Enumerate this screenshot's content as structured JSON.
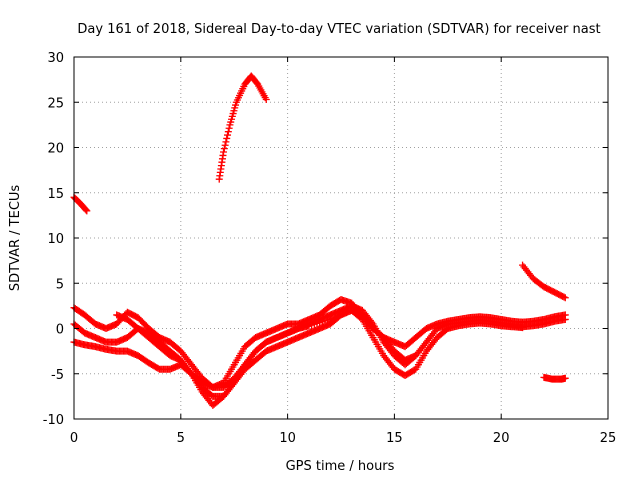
{
  "chart_data": {
    "type": "scatter",
    "title": "Day 161 of 2018, Sidereal Day-to-day VTEC variation (SDTVAR) for receiver nast",
    "xlabel": "GPS time / hours",
    "ylabel": "SDTVAR / TECUs",
    "xlim": [
      0,
      25
    ],
    "ylim": [
      -10,
      30
    ],
    "xticks": [
      0,
      5,
      10,
      15,
      20,
      25
    ],
    "yticks": [
      -10,
      -5,
      0,
      5,
      10,
      15,
      20,
      25,
      30
    ],
    "grid": true,
    "marker": "+",
    "series_color": "#ff0000",
    "series": [
      {
        "name": "arc-a",
        "x": [
          0.0,
          0.3,
          0.6
        ],
        "y": [
          14.5,
          13.8,
          13.0
        ]
      },
      {
        "name": "arc-b",
        "x": [
          6.8,
          7.0,
          7.3,
          7.6,
          8.0,
          8.3,
          8.6,
          9.0
        ],
        "y": [
          16.5,
          19.5,
          22.5,
          25.0,
          27.0,
          27.9,
          27.0,
          25.3
        ]
      },
      {
        "name": "arc-c",
        "x": [
          21.0,
          21.5,
          22.0,
          22.5,
          23.0
        ],
        "y": [
          7.0,
          5.5,
          4.6,
          4.0,
          3.4
        ]
      },
      {
        "name": "arc-d",
        "x": [
          22.0,
          22.4,
          22.8,
          23.0
        ],
        "y": [
          -5.4,
          -5.6,
          -5.6,
          -5.5
        ]
      },
      {
        "name": "arc-e",
        "x": [
          0.0,
          0.5,
          1.0,
          1.5,
          2.0,
          2.5,
          3.0,
          3.5,
          4.0,
          4.5,
          5.0,
          5.5,
          6.0,
          6.5,
          7.0,
          7.5,
          8.0,
          8.5,
          9.0,
          9.5,
          10.0,
          10.5,
          11.0,
          11.5,
          12.0,
          12.5,
          13.0,
          13.5,
          14.0,
          14.5,
          15.0,
          15.5,
          16.0,
          16.5,
          17.0,
          17.5,
          18.0,
          18.5,
          19.0,
          19.5,
          20.0,
          20.5,
          21.0,
          21.5,
          22.0,
          22.5,
          23.0
        ],
        "y": [
          2.3,
          1.5,
          0.5,
          0.0,
          0.5,
          1.8,
          1.2,
          0.0,
          -1.0,
          -1.5,
          -2.5,
          -4.0,
          -5.5,
          -6.5,
          -6.0,
          -4.0,
          -2.0,
          -1.0,
          -0.5,
          0.0,
          0.5,
          0.5,
          1.0,
          1.5,
          2.5,
          3.2,
          2.8,
          1.5,
          0.0,
          -1.0,
          -1.5,
          -2.0,
          -1.0,
          0.0,
          0.5,
          0.8,
          1.0,
          1.2,
          1.3,
          1.2,
          1.0,
          0.8,
          0.7,
          0.8,
          1.0,
          1.3,
          1.5
        ]
      },
      {
        "name": "arc-f",
        "x": [
          0.0,
          0.5,
          1.0,
          1.5,
          2.0,
          2.5,
          3.0,
          3.5,
          4.0,
          4.5,
          5.0,
          5.5,
          6.0,
          6.5,
          7.0,
          7.5,
          8.0,
          8.5,
          9.0,
          9.5,
          10.0,
          10.5,
          11.0,
          11.5,
          12.0,
          12.5,
          13.0,
          13.5,
          14.0,
          14.5,
          15.0,
          15.5,
          16.0,
          16.5,
          17.0,
          17.5,
          18.0,
          18.5,
          19.0,
          19.5,
          20.0,
          20.5,
          21.0,
          21.5,
          22.0,
          22.5,
          23.0
        ],
        "y": [
          0.5,
          -0.5,
          -1.0,
          -1.5,
          -1.5,
          -1.0,
          0.0,
          -0.5,
          -1.5,
          -2.5,
          -3.5,
          -5.0,
          -6.5,
          -7.5,
          -7.5,
          -6.0,
          -4.0,
          -2.5,
          -1.5,
          -1.0,
          -0.5,
          0.0,
          0.5,
          1.0,
          1.5,
          2.0,
          2.5,
          2.0,
          0.5,
          -1.5,
          -3.0,
          -4.0,
          -3.0,
          -1.5,
          0.0,
          0.5,
          0.6,
          0.8,
          0.9,
          0.8,
          0.6,
          0.4,
          0.2,
          0.3,
          0.5,
          0.8,
          1.0
        ]
      },
      {
        "name": "arc-g",
        "x": [
          0.0,
          0.5,
          1.0,
          1.5,
          2.0,
          2.5,
          3.0,
          3.5,
          4.0,
          4.5,
          5.0,
          5.5,
          6.0,
          6.5,
          7.0,
          7.5,
          8.0,
          8.5,
          9.0,
          9.5,
          10.0,
          10.5,
          11.0,
          11.5,
          12.0,
          12.5,
          13.0,
          13.5,
          14.0,
          14.5,
          15.0,
          15.5,
          16.0,
          16.5,
          17.0,
          17.5,
          18.0,
          18.5,
          19.0,
          19.5,
          20.0,
          20.5,
          21.0
        ],
        "y": [
          -1.5,
          -1.8,
          -2.0,
          -2.3,
          -2.5,
          -2.5,
          -3.0,
          -3.8,
          -4.5,
          -4.5,
          -4.0,
          -5.0,
          -7.0,
          -8.5,
          -7.5,
          -6.0,
          -4.5,
          -3.5,
          -2.5,
          -2.0,
          -1.5,
          -1.0,
          -0.5,
          0.0,
          0.5,
          1.5,
          2.0,
          1.0,
          -1.0,
          -3.0,
          -4.5,
          -5.2,
          -4.5,
          -2.5,
          -1.0,
          0.0,
          0.3,
          0.5,
          0.6,
          0.5,
          0.3,
          0.2,
          0.1
        ]
      },
      {
        "name": "arc-h",
        "x": [
          2.0,
          2.5,
          3.0,
          3.5,
          4.0,
          4.5,
          5.0,
          5.5,
          6.0,
          6.5,
          7.0,
          7.5,
          8.0,
          8.5,
          9.0,
          9.5,
          10.0,
          10.5,
          11.0,
          12.0,
          13.0,
          13.5,
          14.0,
          14.5,
          15.0,
          15.5,
          16.0
        ],
        "y": [
          1.5,
          1.0,
          0.0,
          -1.0,
          -2.0,
          -3.0,
          -3.5,
          -5.0,
          -6.0,
          -6.5,
          -6.5,
          -5.5,
          -4.0,
          -2.5,
          -1.5,
          -1.0,
          -0.5,
          0.0,
          0.3,
          1.0,
          2.0,
          1.5,
          0.0,
          -1.0,
          -2.5,
          -3.5,
          -3.0
        ]
      }
    ]
  }
}
